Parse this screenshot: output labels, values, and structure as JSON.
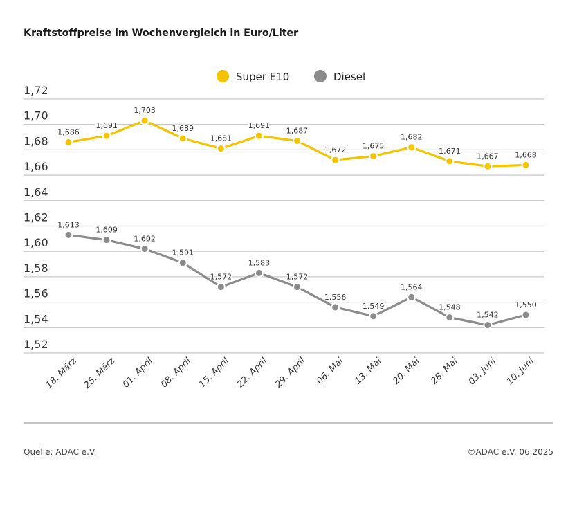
{
  "title": "Kraftstoffpreise im Wochenvergleich in Euro/Liter",
  "footer": {
    "source": "Quelle: ADAC e.V.",
    "copyright": "©ADAC e.V. 06.2025"
  },
  "chart_data": {
    "type": "line",
    "title": "Kraftstoffpreise im Wochenvergleich in Euro/Liter",
    "categories": [
      "18. März",
      "25. März",
      "01. April",
      "08. April",
      "15. April",
      "22. April",
      "29. April",
      "06. Mai",
      "13. Mai",
      "20. Mai",
      "28. Mai",
      "03. Juni",
      "10. Juni"
    ],
    "yticks": [
      "1,52",
      "1,54",
      "1,56",
      "1,58",
      "1,60",
      "1,62",
      "1,64",
      "1,66",
      "1,68",
      "1,70",
      "1,72"
    ],
    "ylim": [
      1.52,
      1.72
    ],
    "grid": true,
    "legend_position": "top-center",
    "series": [
      {
        "name": "Super E10",
        "color": "#f5c400",
        "values": [
          1.686,
          1.691,
          1.703,
          1.689,
          1.681,
          1.691,
          1.687,
          1.672,
          1.675,
          1.682,
          1.671,
          1.667,
          1.668
        ],
        "labels": [
          "1,686",
          "1,691",
          "1,703",
          "1,689",
          "1,681",
          "1,691",
          "1,687",
          "1,672",
          "1,675",
          "1,682",
          "1,671",
          "1,667",
          "1,668"
        ]
      },
      {
        "name": "Diesel",
        "color": "#8c8c8c",
        "values": [
          1.613,
          1.609,
          1.602,
          1.591,
          1.572,
          1.583,
          1.572,
          1.556,
          1.549,
          1.564,
          1.548,
          1.542,
          1.55
        ],
        "labels": [
          "1,613",
          "1,609",
          "1,602",
          "1,591",
          "1,572",
          "1,583",
          "1,572",
          "1,556",
          "1,549",
          "1,564",
          "1,548",
          "1,542",
          "1,550"
        ]
      }
    ]
  }
}
